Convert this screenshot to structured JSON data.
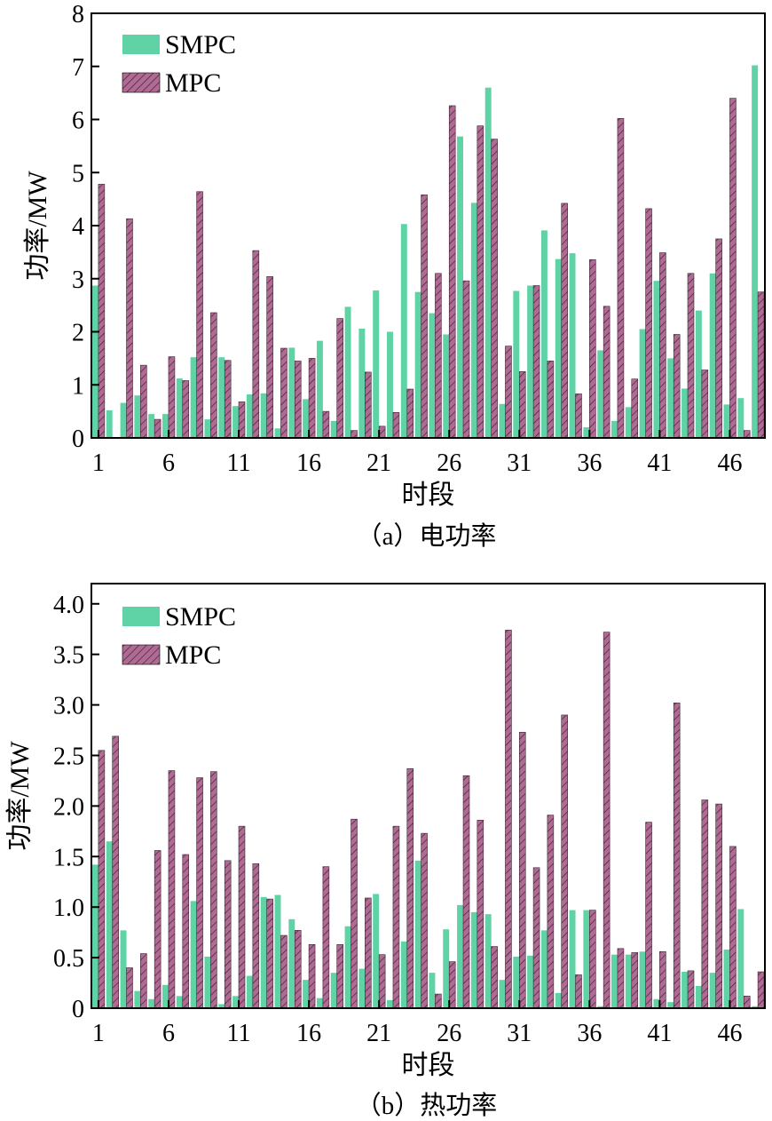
{
  "colors": {
    "smpc": "#5fd3a5",
    "mpc": "#b06a93",
    "hatch": "#33202c"
  },
  "charts": [
    {
      "caption": "（a）电功率",
      "xlabel": "时段",
      "ylabel": "功率/MW",
      "xtick_labels": [
        "1",
        "6",
        "11",
        "16",
        "21",
        "26",
        "31",
        "36",
        "41",
        "46"
      ],
      "ytick_labels": [
        "0",
        "1",
        "2",
        "3",
        "4",
        "5",
        "6",
        "7",
        "8"
      ],
      "legend": [
        "SMPC",
        "MPC"
      ]
    },
    {
      "caption": "（b）热功率",
      "xlabel": "时段",
      "ylabel": "功率/MW",
      "xtick_labels": [
        "1",
        "6",
        "11",
        "16",
        "21",
        "26",
        "31",
        "36",
        "41",
        "46"
      ],
      "ytick_labels": [
        "0",
        "0.5",
        "1.0",
        "1.5",
        "2.0",
        "2.5",
        "3.0",
        "3.5",
        "4.0"
      ],
      "legend": [
        "SMPC",
        "MPC"
      ]
    }
  ],
  "chart_data": [
    {
      "type": "bar",
      "categories": [
        "1",
        "2",
        "3",
        "4",
        "5",
        "6",
        "7",
        "8",
        "9",
        "10",
        "11",
        "12",
        "13",
        "14",
        "15",
        "16",
        "17",
        "18",
        "19",
        "20",
        "21",
        "22",
        "23",
        "24",
        "25",
        "26",
        "27",
        "28",
        "29",
        "30",
        "31",
        "32",
        "33",
        "34",
        "35",
        "36",
        "37",
        "38",
        "39",
        "40",
        "41",
        "42",
        "43",
        "44",
        "45",
        "46",
        "47",
        "48"
      ],
      "ylim": [
        0,
        8
      ],
      "yticks": [
        0,
        1,
        2,
        3,
        4,
        5,
        6,
        7,
        8
      ],
      "series": [
        {
          "name": "SMPC",
          "values": [
            2.87,
            0.52,
            0.66,
            0.8,
            0.45,
            0.45,
            1.12,
            1.52,
            0.35,
            1.52,
            0.6,
            0.82,
            0.84,
            0.18,
            1.7,
            0.73,
            1.83,
            0.32,
            2.47,
            2.06,
            2.78,
            2.0,
            4.03,
            2.75,
            2.35,
            1.95,
            5.68,
            4.43,
            6.6,
            0.64,
            2.77,
            2.87,
            3.91,
            3.37,
            3.48,
            0.2,
            1.65,
            0.32,
            0.58,
            2.05,
            2.96,
            1.5,
            0.93,
            2.4,
            3.1,
            0.63,
            0.75,
            7.02
          ]
        },
        {
          "name": "MPC",
          "values": [
            4.78,
            0,
            4.13,
            1.37,
            0.35,
            1.53,
            1.08,
            4.64,
            2.36,
            1.46,
            0.68,
            3.53,
            3.04,
            1.69,
            1.45,
            1.5,
            0.5,
            2.25,
            0.14,
            1.24,
            0.22,
            0.48,
            0.92,
            4.58,
            3.1,
            6.26,
            2.96,
            5.88,
            5.63,
            1.73,
            1.25,
            2.87,
            1.45,
            4.42,
            0.83,
            3.36,
            2.48,
            6.02,
            1.11,
            4.32,
            3.49,
            1.95,
            3.1,
            1.28,
            3.75,
            6.4,
            0.14,
            2.75
          ]
        }
      ]
    },
    {
      "type": "bar",
      "categories": [
        "1",
        "2",
        "3",
        "4",
        "5",
        "6",
        "7",
        "8",
        "9",
        "10",
        "11",
        "12",
        "13",
        "14",
        "15",
        "16",
        "17",
        "18",
        "19",
        "20",
        "21",
        "22",
        "23",
        "24",
        "25",
        "26",
        "27",
        "28",
        "29",
        "30",
        "31",
        "32",
        "33",
        "34",
        "35",
        "36",
        "37",
        "38",
        "39",
        "40",
        "41",
        "42",
        "43",
        "44",
        "45",
        "46",
        "47",
        "48"
      ],
      "ylim": [
        0,
        4.2
      ],
      "yticks": [
        0,
        0.5,
        1.0,
        1.5,
        2.0,
        2.5,
        3.0,
        3.5,
        4.0
      ],
      "series": [
        {
          "name": "SMPC",
          "values": [
            1.42,
            1.65,
            0.77,
            0.17,
            0.09,
            0.23,
            0.12,
            1.06,
            0.51,
            0.04,
            0.12,
            0.32,
            1.1,
            1.12,
            0.88,
            0.28,
            0.1,
            0.35,
            0.81,
            0.39,
            1.13,
            0.08,
            0.66,
            1.46,
            0.35,
            0.78,
            1.02,
            0.95,
            0.93,
            0.28,
            0.51,
            0.52,
            0.77,
            0.15,
            0.97,
            0.97,
            0.02,
            0.53,
            0.53,
            0.56,
            0.09,
            0.06,
            0.36,
            0.22,
            0.35,
            0.58,
            0.98,
            0.02
          ]
        },
        {
          "name": "MPC",
          "values": [
            2.55,
            2.69,
            0.4,
            0.54,
            1.56,
            2.35,
            1.52,
            2.28,
            2.34,
            1.46,
            1.8,
            1.43,
            1.08,
            0.72,
            0.77,
            0.63,
            1.4,
            0.63,
            1.87,
            1.09,
            0.53,
            1.8,
            2.37,
            1.73,
            0.14,
            0.46,
            2.3,
            1.86,
            0.61,
            3.74,
            2.73,
            1.39,
            1.91,
            2.9,
            0.33,
            0.97,
            3.72,
            0.59,
            0.55,
            1.84,
            0.56,
            3.02,
            0.37,
            2.06,
            2.02,
            1.6,
            0.12,
            0.36
          ]
        }
      ]
    }
  ]
}
